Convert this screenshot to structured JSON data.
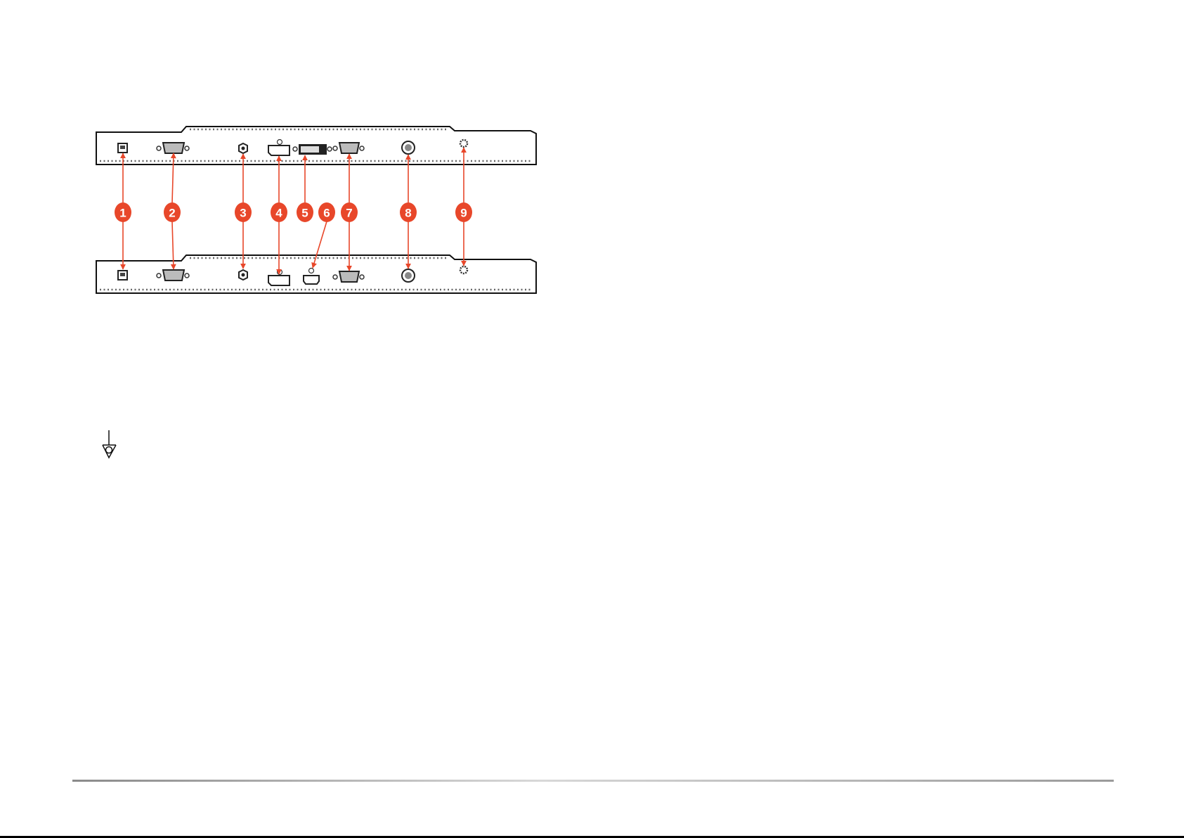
{
  "diagram": {
    "callouts": [
      {
        "number": "1",
        "port": "usb-b"
      },
      {
        "number": "2",
        "port": "vga"
      },
      {
        "number": "3",
        "port": "coax"
      },
      {
        "number": "4",
        "port": "displayport"
      },
      {
        "number": "5",
        "port": "dvi"
      },
      {
        "number": "6",
        "port": "hdmi"
      },
      {
        "number": "7",
        "port": "vga"
      },
      {
        "number": "8",
        "port": "s-video"
      },
      {
        "number": "9",
        "port": "ground-screw"
      }
    ],
    "callout_color": "#e8472a",
    "panel_color": "#111111"
  },
  "symbols": {
    "ground": "equipotential-ground-icon"
  }
}
